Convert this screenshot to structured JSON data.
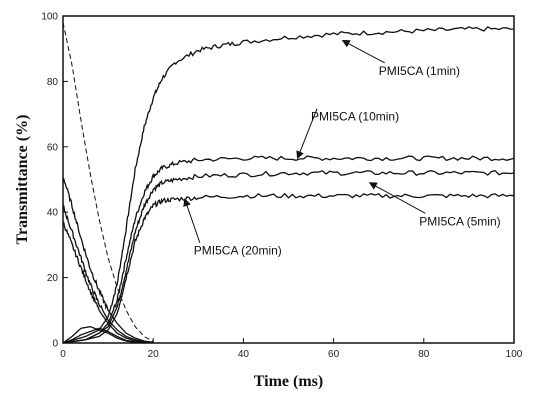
{
  "chart_data": {
    "type": "line",
    "title": "",
    "xlabel": "Time (ms)",
    "ylabel": "Transmittance (%)",
    "xlim": [
      0,
      100
    ],
    "ylim": [
      0,
      100
    ],
    "xticks": [
      0,
      20,
      40,
      60,
      80,
      100
    ],
    "yticks": [
      0,
      20,
      40,
      60,
      80,
      100
    ],
    "grid": false,
    "legend": "none",
    "series": [
      {
        "name": "PMI5CA (1min)",
        "x": [
          0,
          5,
          8,
          10,
          12,
          14,
          16,
          18,
          20,
          22,
          25,
          30,
          35,
          40,
          50,
          60,
          70,
          80,
          90,
          100
        ],
        "y": [
          0,
          2,
          4,
          8,
          18,
          35,
          53,
          66,
          75,
          81,
          86,
          89.5,
          91,
          92,
          93.5,
          94.5,
          95,
          95.5,
          96,
          96
        ]
      },
      {
        "name": "PMI5CA (10min)",
        "x": [
          0,
          5,
          8,
          10,
          12,
          14,
          16,
          18,
          20,
          22,
          25,
          30,
          40,
          50,
          60,
          70,
          80,
          90,
          100
        ],
        "y": [
          0,
          1,
          3,
          6,
          13,
          26,
          38,
          46,
          51,
          53.5,
          55,
          56,
          56.5,
          56.5,
          56.5,
          56.5,
          56.5,
          56.5,
          56.5
        ]
      },
      {
        "name": "PMI5CA (5min)",
        "x": [
          0,
          5,
          8,
          10,
          12,
          14,
          16,
          18,
          20,
          22,
          25,
          30,
          40,
          50,
          60,
          70,
          80,
          90,
          100
        ],
        "y": [
          0,
          1,
          3,
          5,
          11,
          22,
          34,
          42,
          47,
          49,
          50,
          51,
          51.5,
          52,
          52,
          52,
          52,
          52,
          52
        ]
      },
      {
        "name": "PMI5CA (20min)",
        "x": [
          0,
          5,
          8,
          10,
          12,
          14,
          16,
          18,
          20,
          22,
          25,
          30,
          40,
          50,
          60,
          70,
          80,
          90,
          100
        ],
        "y": [
          0,
          1,
          2,
          4,
          9,
          20,
          31,
          38,
          42,
          43.5,
          44,
          44.5,
          45,
          45,
          45,
          45,
          45,
          45,
          45
        ]
      },
      {
        "name": "",
        "style": "dashed",
        "x": [
          0,
          2,
          4,
          6,
          8,
          10,
          12,
          14,
          16,
          18,
          20
        ],
        "y": [
          98,
          85,
          68,
          52,
          38,
          26,
          17,
          10,
          5,
          2,
          0.5
        ]
      },
      {
        "name": "",
        "x": [
          0,
          2,
          4,
          6,
          8,
          10,
          12,
          14,
          16,
          18,
          20
        ],
        "y": [
          51,
          42,
          32,
          23,
          16,
          10,
          6,
          3,
          1.5,
          0.6,
          0.2
        ]
      },
      {
        "name": "",
        "x": [
          0,
          2,
          4,
          6,
          8,
          10,
          12,
          14,
          16,
          18,
          20
        ],
        "y": [
          42,
          34,
          26,
          18,
          12,
          7,
          4,
          2,
          1,
          0.4,
          0.1
        ]
      },
      {
        "name": "",
        "x": [
          0,
          2,
          4,
          6,
          8,
          10,
          12,
          14,
          16,
          18,
          20
        ],
        "y": [
          37,
          30,
          23,
          16,
          10,
          6,
          3,
          1.5,
          0.6,
          0.2,
          0
        ]
      },
      {
        "name": "",
        "x": [
          0,
          2,
          4,
          6,
          8,
          10,
          12,
          14,
          16,
          18
        ],
        "y": [
          0,
          2,
          4.5,
          5,
          4,
          3,
          1.5,
          0.6,
          0.2,
          0
        ]
      },
      {
        "name": "",
        "x": [
          0,
          2,
          4,
          6,
          8,
          10,
          12,
          14,
          16,
          18
        ],
        "y": [
          0,
          1,
          2.5,
          3.5,
          4.5,
          3.5,
          2,
          0.8,
          0.3,
          0
        ]
      }
    ],
    "annotations": [
      {
        "text": "PMI5CA (1min)",
        "x": 70,
        "y": 82,
        "arrow_to": [
          62,
          92.5
        ]
      },
      {
        "text": "PMI5CA (10min)",
        "x": 55,
        "y": 68,
        "arrow_to": [
          52,
          56.5
        ]
      },
      {
        "text": "PMI5CA (5min)",
        "x": 79,
        "y": 36,
        "arrow_to": [
          68,
          49
        ]
      },
      {
        "text": "PMI5CA (20min)",
        "x": 29,
        "y": 27,
        "arrow_to": [
          27,
          44
        ]
      }
    ]
  }
}
